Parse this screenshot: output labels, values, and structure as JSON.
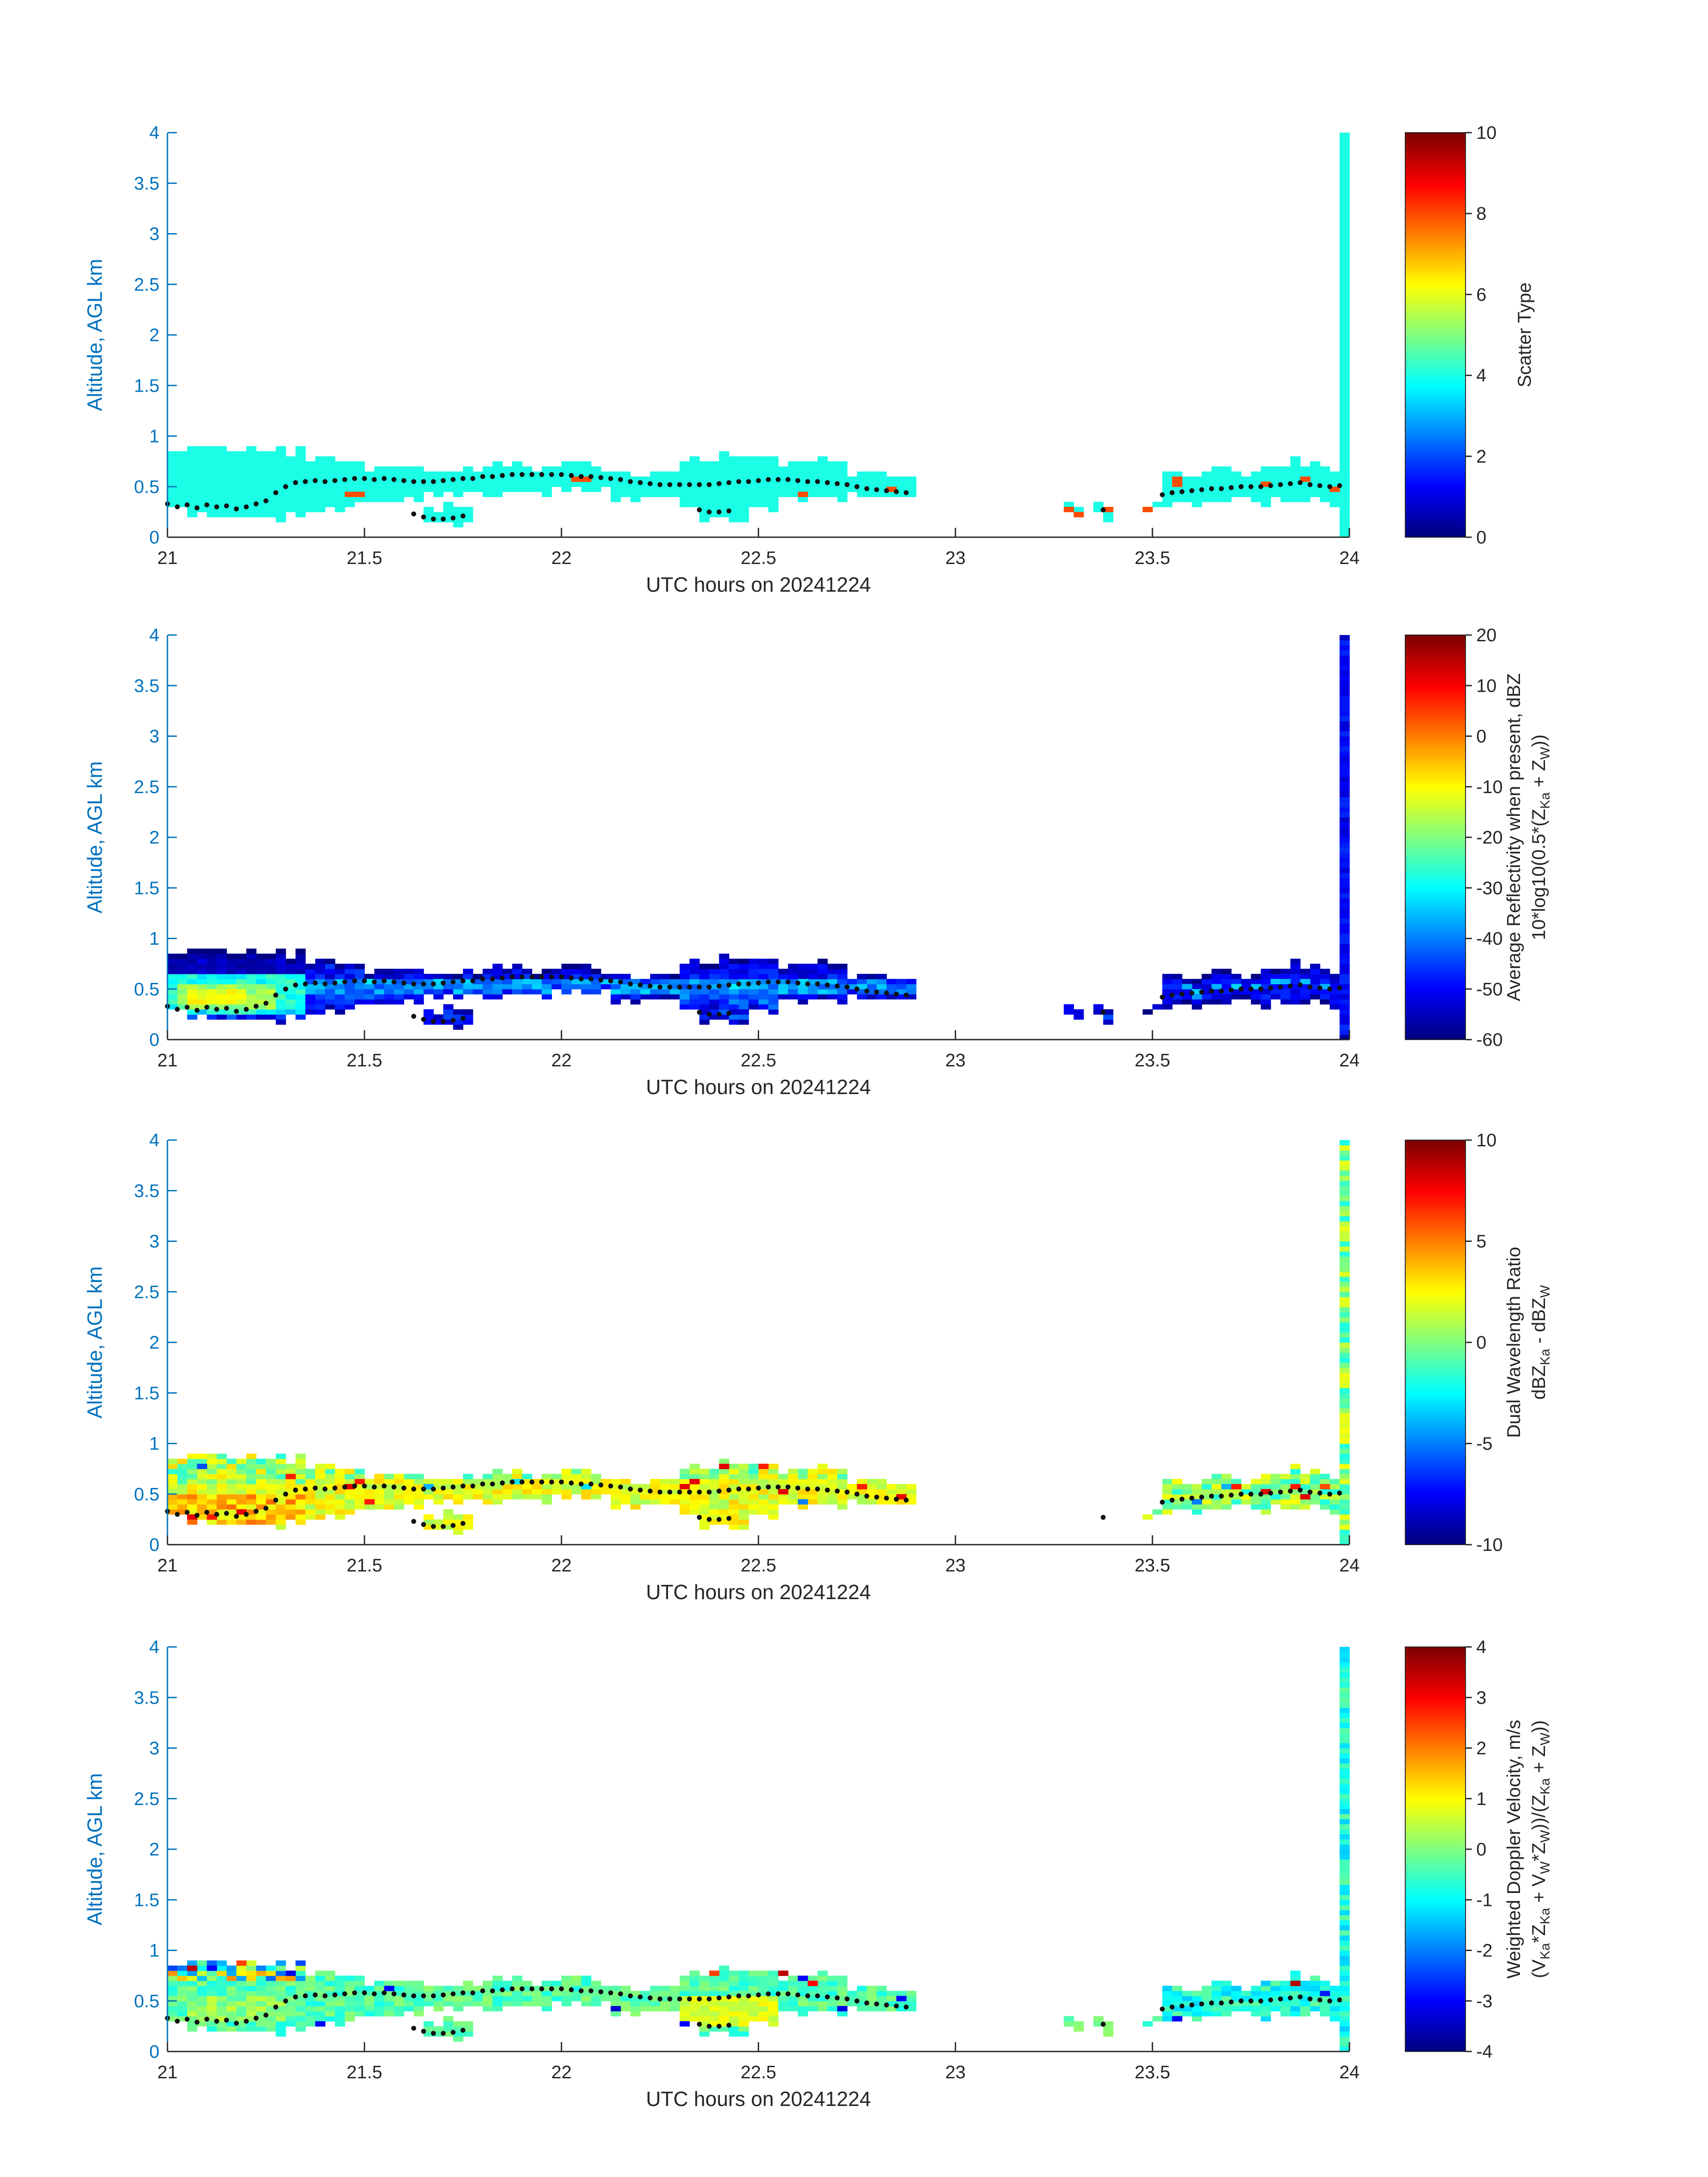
{
  "style": {
    "background": "#ffffff",
    "axis_y_color": "#0072BD",
    "axis_x_color": "#262626",
    "dot_color": "#111111",
    "colorbar_border_color": "#262626"
  },
  "chart_data": {
    "type": "heatmap",
    "colormap": "jet",
    "x": {
      "label": "UTC hours on 20241224",
      "range": [
        21,
        24
      ],
      "ticks": [
        21,
        21.5,
        22,
        22.5,
        23,
        23.5,
        24
      ],
      "tick_labels": [
        "21",
        "21.5",
        "22",
        "22.5",
        "23",
        "23.5",
        "24"
      ]
    },
    "y": {
      "label": "Altitude, AGL km",
      "range": [
        0,
        4
      ],
      "ticks": [
        0,
        0.5,
        1,
        1.5,
        2,
        2.5,
        3,
        3.5,
        4
      ],
      "tick_labels": [
        "0",
        "0.5",
        "1",
        "1.5",
        "2",
        "2.5",
        "3",
        "3.5",
        "4"
      ]
    },
    "cell_size": {
      "dt_hours": 0.025,
      "dz_km": 0.05
    },
    "cloud_mask_segments": [
      [
        21.0,
        21.06,
        0.28,
        0.88
      ],
      [
        21.06,
        21.36,
        0.2,
        0.86
      ],
      [
        21.36,
        21.47,
        0.28,
        0.76
      ],
      [
        21.47,
        21.57,
        0.33,
        0.7
      ],
      [
        21.57,
        21.64,
        0.38,
        0.66
      ],
      [
        21.64,
        21.79,
        0.43,
        0.67
      ],
      [
        21.64,
        21.78,
        0.14,
        0.3
      ],
      [
        21.79,
        21.97,
        0.45,
        0.7
      ],
      [
        21.97,
        22.13,
        0.48,
        0.7
      ],
      [
        22.13,
        22.31,
        0.39,
        0.66
      ],
      [
        22.31,
        22.56,
        0.3,
        0.79
      ],
      [
        22.36,
        22.48,
        0.19,
        0.3
      ],
      [
        22.56,
        22.72,
        0.39,
        0.76
      ],
      [
        22.72,
        22.89,
        0.4,
        0.62
      ],
      [
        23.27,
        23.33,
        0.22,
        0.31
      ],
      [
        23.35,
        23.41,
        0.2,
        0.3
      ],
      [
        23.47,
        23.53,
        0.26,
        0.36
      ],
      [
        23.53,
        23.63,
        0.33,
        0.62
      ],
      [
        23.63,
        23.81,
        0.35,
        0.67
      ],
      [
        23.81,
        23.96,
        0.38,
        0.73
      ],
      [
        23.96,
        23.995,
        0.34,
        0.62
      ],
      [
        23.985,
        24.001,
        0.0,
        4.0
      ]
    ],
    "dot_track": [
      [
        21.0,
        0.33
      ],
      [
        21.025,
        0.3
      ],
      [
        21.05,
        0.32
      ],
      [
        21.075,
        0.29
      ],
      [
        21.1,
        0.32
      ],
      [
        21.125,
        0.3
      ],
      [
        21.15,
        0.31
      ],
      [
        21.175,
        0.28
      ],
      [
        21.2,
        0.3
      ],
      [
        21.225,
        0.33
      ],
      [
        21.25,
        0.36
      ],
      [
        21.275,
        0.44
      ],
      [
        21.3,
        0.5
      ],
      [
        21.325,
        0.54
      ],
      [
        21.35,
        0.55
      ],
      [
        21.375,
        0.56
      ],
      [
        21.4,
        0.55
      ],
      [
        21.425,
        0.56
      ],
      [
        21.45,
        0.57
      ],
      [
        21.475,
        0.58
      ],
      [
        21.5,
        0.58
      ],
      [
        21.525,
        0.57
      ],
      [
        21.55,
        0.58
      ],
      [
        21.575,
        0.57
      ],
      [
        21.6,
        0.56
      ],
      [
        21.625,
        0.55
      ],
      [
        21.65,
        0.55
      ],
      [
        21.675,
        0.55
      ],
      [
        21.7,
        0.56
      ],
      [
        21.725,
        0.57
      ],
      [
        21.75,
        0.58
      ],
      [
        21.775,
        0.58
      ],
      [
        21.8,
        0.6
      ],
      [
        21.825,
        0.6
      ],
      [
        21.85,
        0.61
      ],
      [
        21.875,
        0.62
      ],
      [
        21.9,
        0.62
      ],
      [
        21.925,
        0.62
      ],
      [
        21.95,
        0.62
      ],
      [
        21.975,
        0.62
      ],
      [
        22.0,
        0.62
      ],
      [
        22.025,
        0.61
      ],
      [
        22.05,
        0.6
      ],
      [
        22.075,
        0.6
      ],
      [
        22.1,
        0.59
      ],
      [
        22.125,
        0.58
      ],
      [
        22.15,
        0.57
      ],
      [
        22.175,
        0.55
      ],
      [
        22.2,
        0.54
      ],
      [
        22.225,
        0.53
      ],
      [
        22.25,
        0.52
      ],
      [
        22.275,
        0.52
      ],
      [
        22.3,
        0.52
      ],
      [
        22.325,
        0.52
      ],
      [
        22.35,
        0.52
      ],
      [
        22.375,
        0.52
      ],
      [
        22.4,
        0.53
      ],
      [
        22.425,
        0.54
      ],
      [
        22.45,
        0.55
      ],
      [
        22.475,
        0.55
      ],
      [
        22.5,
        0.56
      ],
      [
        22.525,
        0.57
      ],
      [
        22.55,
        0.57
      ],
      [
        22.575,
        0.57
      ],
      [
        22.6,
        0.56
      ],
      [
        22.625,
        0.55
      ],
      [
        22.65,
        0.55
      ],
      [
        22.675,
        0.54
      ],
      [
        22.7,
        0.53
      ],
      [
        22.725,
        0.52
      ],
      [
        22.75,
        0.5
      ],
      [
        22.775,
        0.48
      ],
      [
        22.8,
        0.47
      ],
      [
        22.825,
        0.46
      ],
      [
        22.85,
        0.45
      ],
      [
        22.875,
        0.44
      ],
      [
        21.625,
        0.23
      ],
      [
        21.65,
        0.2
      ],
      [
        21.675,
        0.18
      ],
      [
        21.7,
        0.18
      ],
      [
        21.725,
        0.19
      ],
      [
        21.75,
        0.21
      ],
      [
        22.35,
        0.27
      ],
      [
        22.375,
        0.25
      ],
      [
        22.4,
        0.25
      ],
      [
        22.425,
        0.26
      ],
      [
        23.375,
        0.27
      ],
      [
        23.525,
        0.42
      ],
      [
        23.55,
        0.44
      ],
      [
        23.575,
        0.45
      ],
      [
        23.6,
        0.46
      ],
      [
        23.625,
        0.47
      ],
      [
        23.65,
        0.48
      ],
      [
        23.675,
        0.48
      ],
      [
        23.7,
        0.49
      ],
      [
        23.725,
        0.5
      ],
      [
        23.75,
        0.5
      ],
      [
        23.775,
        0.5
      ],
      [
        23.8,
        0.51
      ],
      [
        23.825,
        0.52
      ],
      [
        23.85,
        0.53
      ],
      [
        23.875,
        0.54
      ],
      [
        23.9,
        0.52
      ],
      [
        23.925,
        0.51
      ],
      [
        23.95,
        0.5
      ],
      [
        23.975,
        0.51
      ]
    ],
    "panels": [
      {
        "id": "scatter-type",
        "colorbar": {
          "label_lines": [
            "Scatter Type"
          ],
          "range": [
            0,
            10
          ],
          "ticks": [
            0,
            2,
            4,
            6,
            8,
            10
          ],
          "tick_labels": [
            "0",
            "2",
            "4",
            "6",
            "8",
            "10"
          ]
        },
        "edge_delta": 0,
        "field": {
          "default": [
            4,
            0
          ],
          "regions": [],
          "exclude": [],
          "speckles": [
            [
              21.465,
              0.44,
              8
            ],
            [
              21.49,
              0.41,
              8
            ],
            [
              22.035,
              0.575,
              8
            ],
            [
              22.06,
              0.575,
              8
            ],
            [
              22.62,
              0.44,
              8
            ],
            [
              22.845,
              0.46,
              8
            ],
            [
              23.285,
              0.26,
              8
            ],
            [
              23.31,
              0.245,
              8
            ],
            [
              23.375,
              0.26,
              8
            ],
            [
              23.49,
              0.3,
              8
            ],
            [
              23.555,
              0.52,
              8
            ],
            [
              23.555,
              0.575,
              8
            ],
            [
              23.785,
              0.5,
              8
            ],
            [
              23.9,
              0.555,
              8
            ],
            [
              23.965,
              0.46,
              8
            ]
          ]
        }
      },
      {
        "id": "reflectivity",
        "colorbar": {
          "label_lines": [
            "Average Reflectivity when present, dBZ",
            "10*log10(0.5*(Z{Ka} + Z{W}))"
          ],
          "range": [
            -60,
            20
          ],
          "ticks": [
            -60,
            -50,
            -40,
            -30,
            -20,
            -10,
            0,
            10,
            20
          ],
          "tick_labels": [
            "-60",
            "-50",
            "-40",
            "-30",
            "-20",
            "-10",
            "0",
            "10",
            "20"
          ]
        },
        "edge_delta": -7,
        "field": {
          "default": [
            -46,
            5
          ],
          "regions": [
            [
              21.0,
              21.36,
              0.18,
              0.92,
              -41,
              6
            ],
            [
              21.0,
              21.36,
              0.66,
              0.92,
              -55,
              3
            ],
            [
              21.0,
              21.34,
              0.24,
              0.64,
              -28,
              5
            ],
            [
              21.02,
              21.28,
              0.3,
              0.56,
              -18,
              4
            ],
            [
              21.04,
              21.2,
              0.34,
              0.5,
              -11,
              3
            ],
            [
              21.36,
              22.9,
              0.44,
              0.64,
              -39,
              6
            ],
            [
              21.36,
              22.9,
              0.62,
              0.92,
              -50,
              5
            ],
            [
              22.31,
              22.56,
              0.28,
              0.44,
              -43,
              6
            ],
            [
              23.4,
              24.01,
              0.0,
              4.0,
              -50,
              4
            ]
          ],
          "exclude": [],
          "speckles": [
            [
              23.58,
              0.5,
              -36
            ],
            [
              23.62,
              0.47,
              -34
            ],
            [
              23.665,
              0.52,
              -36
            ],
            [
              23.71,
              0.5,
              -33
            ],
            [
              23.755,
              0.52,
              -35
            ],
            [
              23.8,
              0.55,
              -34
            ],
            [
              23.845,
              0.57,
              -36
            ],
            [
              23.89,
              0.55,
              -35
            ],
            [
              23.6,
              0.42,
              -38
            ],
            [
              23.93,
              0.5,
              -36
            ],
            [
              21.5,
              0.55,
              -31
            ],
            [
              21.7,
              0.56,
              -33
            ],
            [
              21.92,
              0.6,
              -34
            ],
            [
              22.2,
              0.53,
              -35
            ],
            [
              22.44,
              0.52,
              -31
            ],
            [
              22.6,
              0.56,
              -33
            ],
            [
              22.75,
              0.5,
              -34
            ]
          ]
        }
      },
      {
        "id": "dual-wavelength-ratio",
        "colorbar": {
          "label_lines": [
            "Dual Wavelength Ratio",
            "dBZ{Ka} - dBZ{W}"
          ],
          "range": [
            -10,
            10
          ],
          "ticks": [
            -10,
            -5,
            0,
            5,
            10
          ],
          "tick_labels": [
            "-10",
            "-5",
            "0",
            "5",
            "10"
          ]
        },
        "edge_delta": 0,
        "field": {
          "default": [
            2,
            1.4
          ],
          "regions": [
            [
              21.0,
              21.36,
              0.18,
              0.48,
              3.6,
              1.8
            ],
            [
              21.0,
              21.36,
              0.6,
              0.92,
              0.8,
              2.6
            ],
            [
              21.36,
              22.9,
              0.66,
              0.92,
              0.8,
              2.4
            ],
            [
              23.4,
              24.01,
              0.0,
              4.0,
              0.2,
              2.2
            ]
          ],
          "exclude": [
            [
              23.25,
              23.45,
              0.0,
              1.0
            ]
          ],
          "speckles": [
            [
              21.05,
              0.3,
              8
            ],
            [
              21.12,
              0.28,
              7
            ],
            [
              21.2,
              0.31,
              8
            ],
            [
              21.095,
              0.78,
              -6
            ],
            [
              21.3,
              0.65,
              7
            ],
            [
              21.455,
              0.6,
              8
            ],
            [
              21.48,
              0.62,
              7
            ],
            [
              21.52,
              0.44,
              7
            ],
            [
              21.655,
              0.6,
              -4
            ],
            [
              21.9,
              0.62,
              -3
            ],
            [
              22.05,
              0.6,
              -3
            ],
            [
              22.3,
              0.6,
              8
            ],
            [
              22.33,
              0.62,
              8
            ],
            [
              22.42,
              0.75,
              8
            ],
            [
              22.5,
              0.78,
              7
            ],
            [
              22.55,
              0.5,
              8
            ],
            [
              22.6,
              0.42,
              -5
            ],
            [
              22.75,
              0.55,
              7
            ],
            [
              22.85,
              0.45,
              8
            ],
            [
              23.6,
              0.4,
              -5
            ],
            [
              23.68,
              0.6,
              -4
            ],
            [
              23.72,
              0.55,
              7
            ],
            [
              23.78,
              0.5,
              8
            ],
            [
              23.85,
              0.6,
              7
            ],
            [
              23.9,
              0.45,
              8
            ],
            [
              23.95,
              0.55,
              6
            ]
          ]
        }
      },
      {
        "id": "doppler-velocity",
        "colorbar": {
          "label_lines": [
            "Weighted Doppler Velocity, m/s",
            "(V{Ka}*Z{Ka} + V{W}*Z{W}))/(Z{Ka} + Z{W}))"
          ],
          "range": [
            -4,
            4
          ],
          "ticks": [
            -4,
            -3,
            -2,
            -1,
            0,
            1,
            2,
            3,
            4
          ],
          "tick_labels": [
            "-4",
            "-3",
            "-2",
            "-1",
            "0",
            "1",
            "2",
            "3",
            "4"
          ]
        },
        "edge_delta": 0,
        "field": {
          "default": [
            -0.35,
            0.5
          ],
          "regions": [
            [
              21.0,
              21.36,
              0.7,
              0.92,
              -0.3,
              2.2
            ],
            [
              21.06,
              21.3,
              0.32,
              0.56,
              0.1,
              0.5
            ],
            [
              22.31,
              22.54,
              0.26,
              0.56,
              0.75,
              0.35
            ],
            [
              23.4,
              24.01,
              0.0,
              4.0,
              -0.8,
              0.6
            ]
          ],
          "exclude": [],
          "speckles": [
            [
              21.05,
              0.82,
              3.5
            ],
            [
              21.1,
              0.8,
              -3
            ],
            [
              21.2,
              0.85,
              2.5
            ],
            [
              21.3,
              0.78,
              -3.2
            ],
            [
              21.4,
              0.3,
              -3
            ],
            [
              21.55,
              0.64,
              -3
            ],
            [
              22.13,
              0.42,
              -3.4
            ],
            [
              22.3,
              0.3,
              -3
            ],
            [
              22.4,
              0.78,
              2.5
            ],
            [
              22.55,
              0.78,
              3.5
            ],
            [
              22.6,
              0.74,
              -3
            ],
            [
              22.65,
              0.7,
              3
            ],
            [
              22.72,
              0.42,
              -3.2
            ],
            [
              22.85,
              0.5,
              -3
            ],
            [
              23.55,
              0.35,
              -3
            ],
            [
              23.87,
              0.68,
              3.6
            ],
            [
              23.95,
              0.6,
              -2.8
            ]
          ]
        }
      }
    ]
  }
}
